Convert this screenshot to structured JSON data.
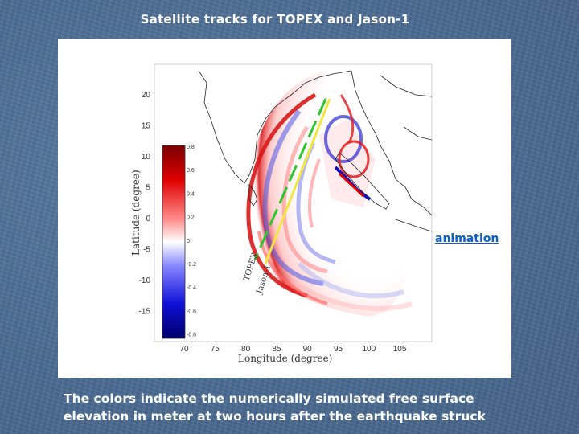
{
  "slide": {
    "title": "Satellite tracks for TOPEX and Jason-1",
    "caption_line1": "The colors indicate the numerically simulated free surface",
    "caption_line2": "elevation in meter at two hours after the earthquake struck",
    "link_label": "animation"
  },
  "figure": {
    "y_axis_label": "Latitude (degree)",
    "x_axis_label": "Longitude (degree)",
    "lat_ticks": [
      "20",
      "15",
      "10",
      "5",
      "0",
      "-5",
      "-10",
      "-15"
    ],
    "lon_ticks": [
      "70",
      "75",
      "80",
      "85",
      "90",
      "95",
      "100",
      "105"
    ],
    "colorbar_ticks": [
      "0.8",
      "0.6",
      "0.4",
      "0.2",
      "0",
      "-0.2",
      "-0.4",
      "-0.6",
      "-0.8"
    ],
    "track_labels": [
      "TOPEX",
      "Jason-1"
    ],
    "colors": {
      "positive": "#d40000",
      "negative": "#1010c8",
      "topex_track": "#2ec42e",
      "jason_track": "#f2e640"
    }
  }
}
